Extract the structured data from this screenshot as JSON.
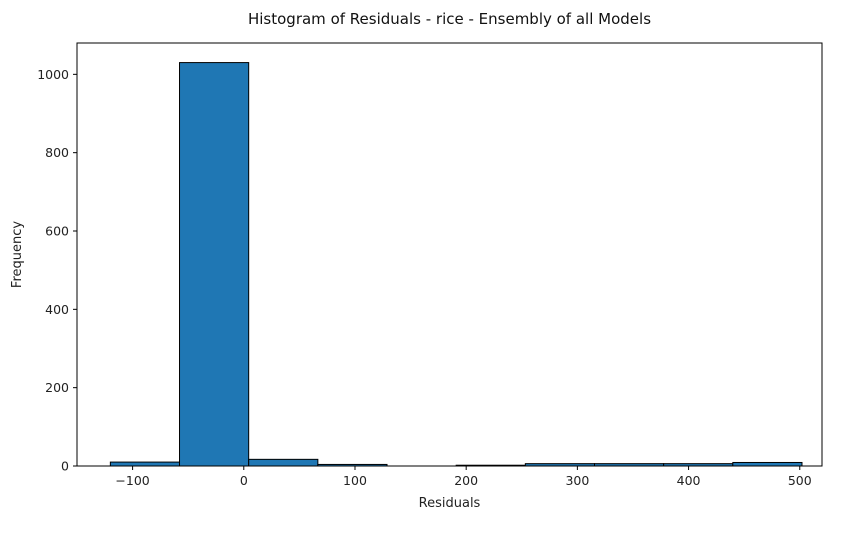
{
  "chart_data": {
    "type": "bar",
    "title": "Histogram of Residuals - rice  - Ensembly of all Models",
    "xlabel": "Residuals",
    "ylabel": "Frequency",
    "bar_color": "#1f77b4",
    "edge_color": "#000000",
    "xlim": [
      -150,
      520
    ],
    "ylim": [
      0,
      1080
    ],
    "xticks": [
      -100,
      0,
      100,
      200,
      300,
      400,
      500
    ],
    "yticks": [
      0,
      200,
      400,
      600,
      800,
      1000
    ],
    "bin_edges": [
      -120,
      -57.8,
      4.4,
      66.6,
      128.8,
      191,
      253.2,
      315.4,
      377.6,
      439.8,
      502
    ],
    "counts": [
      10,
      1030,
      17,
      4,
      0,
      2,
      6,
      6,
      6,
      9
    ],
    "grid": false
  }
}
